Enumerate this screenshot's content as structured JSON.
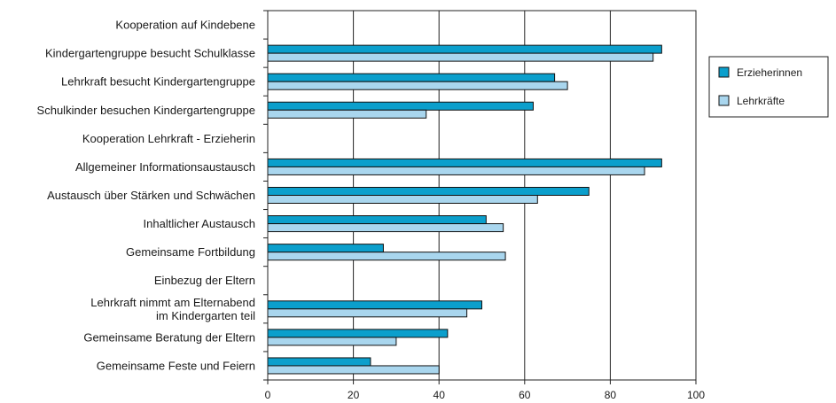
{
  "chart_data": {
    "type": "bar",
    "orientation": "horizontal",
    "categories": [
      [
        "Kooperation auf Kindebene"
      ],
      [
        "Kindergartengruppe besucht Schulklasse"
      ],
      [
        "Lehrkraft besucht Kindergartengruppe"
      ],
      [
        "Schulkinder besuchen Kindergartengruppe"
      ],
      [
        "Kooperation Lehrkraft - Erzieherin"
      ],
      [
        "Allgemeiner Informationsaustausch"
      ],
      [
        "Austausch über Stärken und Schwächen"
      ],
      [
        "Inhaltlicher Austausch"
      ],
      [
        "Gemeinsame Fortbildung"
      ],
      [
        "Einbezug der Eltern"
      ],
      [
        "Lehrkraft nimmt am Elternabend",
        "im Kindergarten teil"
      ],
      [
        "Gemeinsame Beratung der Eltern"
      ],
      [
        "Gemeinsame Feste und Feiern"
      ]
    ],
    "series": [
      {
        "name": "Erzieherinnen",
        "color": "#0b9fcc",
        "values": [
          null,
          92,
          67,
          62,
          null,
          92,
          75,
          51,
          27,
          null,
          50,
          42,
          24
        ]
      },
      {
        "name": "Lehrkräfte",
        "color": "#a9d6ee",
        "values": [
          null,
          90,
          70,
          37,
          null,
          88,
          63,
          55,
          55.5,
          null,
          46.5,
          30,
          40
        ]
      }
    ],
    "xlim": [
      0,
      100
    ],
    "xticks": [
      0,
      20,
      40,
      60,
      80,
      100
    ],
    "grid": true,
    "legend_position": "right"
  }
}
